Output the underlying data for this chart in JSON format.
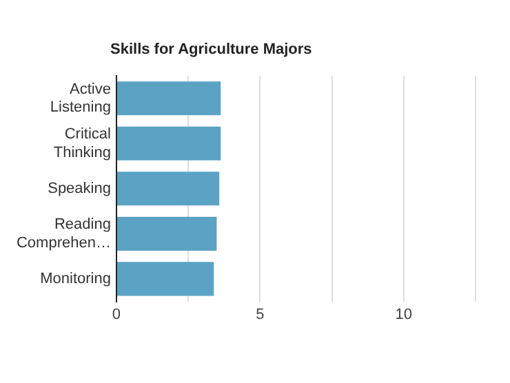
{
  "chart_data": {
    "type": "bar",
    "orientation": "horizontal",
    "title": "Skills for Agriculture Majors",
    "categories": [
      "Active Listening",
      "Critical Thinking",
      "Speaking",
      "Reading Comprehen…",
      "Monitoring"
    ],
    "values": [
      3.63,
      3.63,
      3.58,
      3.49,
      3.39
    ],
    "color": "#5ba3c4",
    "xlim": [
      0,
      12.5
    ],
    "xticks": [
      0,
      {
        "value": 2.5,
        "label": null
      },
      5,
      {
        "value": 7.5,
        "label": null
      },
      10,
      {
        "value": 12.5,
        "label": null
      }
    ],
    "grid": "x",
    "legend": false
  }
}
